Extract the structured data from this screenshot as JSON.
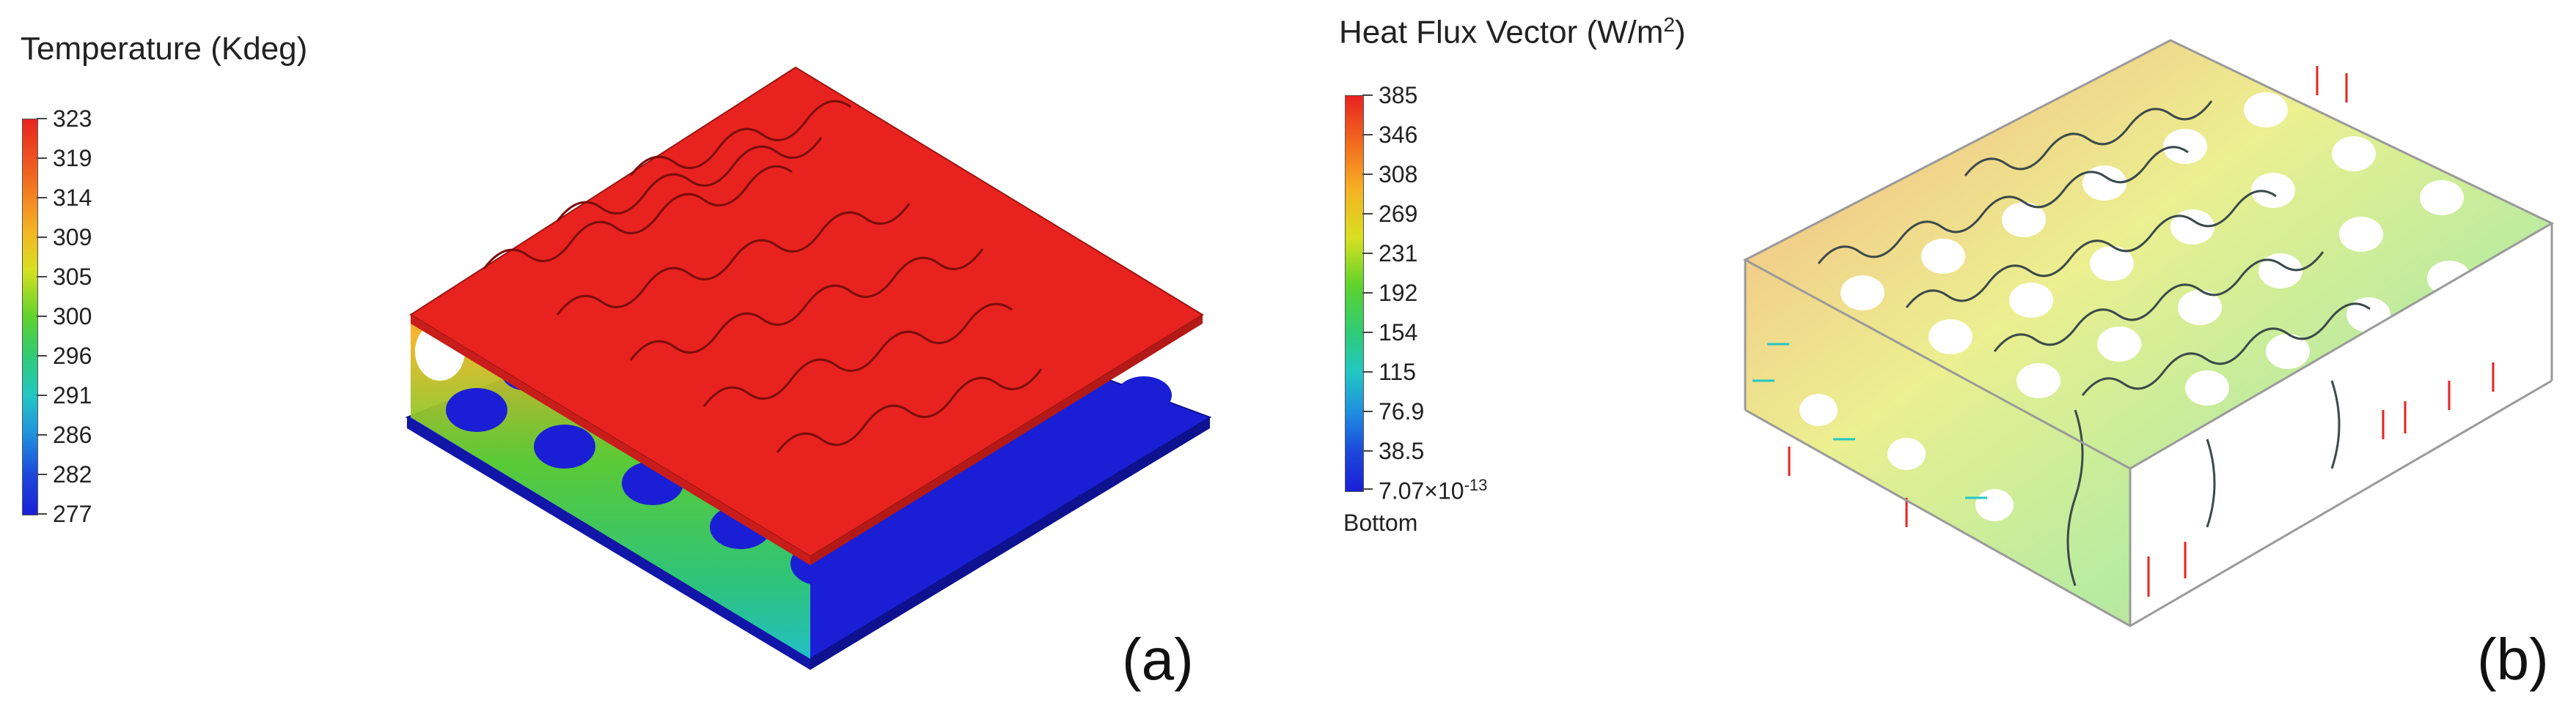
{
  "panel_a": {
    "legend_title": "Temperature (Kdeg)",
    "ticks": [
      "323",
      "319",
      "314",
      "309",
      "305",
      "300",
      "296",
      "291",
      "286",
      "282",
      "277"
    ],
    "label": "(a)"
  },
  "panel_b": {
    "legend_title_main": "Heat Flux Vector (W/m",
    "legend_title_sup": "2",
    "legend_title_end": ")",
    "ticks": [
      "385",
      "346",
      "308",
      "269",
      "231",
      "192",
      "154",
      "115",
      "76.9",
      "38.5"
    ],
    "bottom_tick_mantissa": "7.07×10",
    "bottom_tick_exp": "-13",
    "bottom_note": "Bottom",
    "label": "(b)"
  },
  "colors": {
    "hot": "#e8231f",
    "cold": "#1a1fd6",
    "mid": "#2ecc40",
    "outline": "#9a9a9a"
  }
}
